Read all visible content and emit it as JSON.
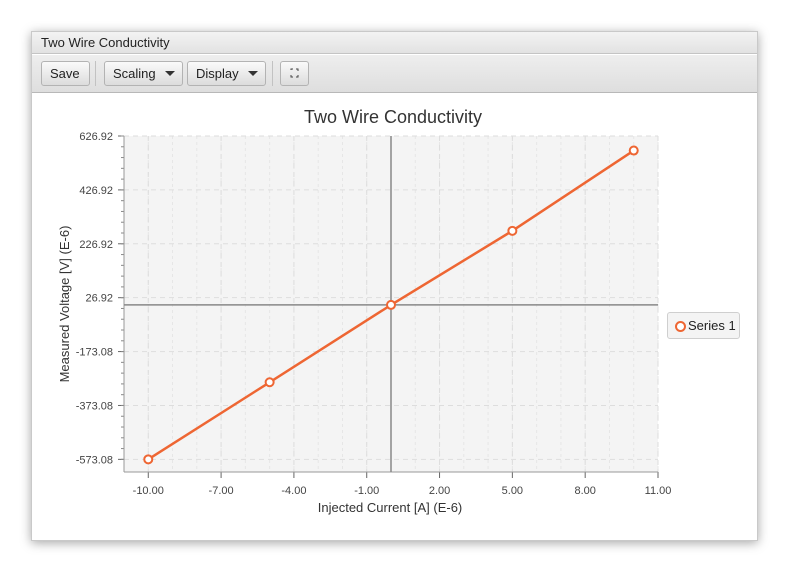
{
  "window": {
    "title": "Two Wire Conductivity"
  },
  "toolbar": {
    "save_label": "Save",
    "scaling_label": "Scaling",
    "display_label": "Display",
    "fullscreen_icon": "fullscreen-icon"
  },
  "colors": {
    "series": "#ee6633",
    "plot_background": "#f4f4f4",
    "grid": "#dddddd",
    "zero_axis": "#888888"
  },
  "chart_data": {
    "type": "line",
    "title": "Two Wire Conductivity",
    "xlabel": "Injected Current [A] (E-6)",
    "ylabel": "Measured Voltage [V] (E-6)",
    "xlim": [
      -11,
      11.0
    ],
    "ylim": [
      -620,
      626.92
    ],
    "x_ticks": [
      "-10.00",
      "-7.00",
      "-4.00",
      "-1.00",
      "2.00",
      "5.00",
      "8.00",
      "11.00"
    ],
    "y_ticks": [
      "626.92",
      "426.92",
      "226.92",
      "26.92",
      "-173.08",
      "-373.08",
      "-573.08"
    ],
    "grid": true,
    "legend_position": "right",
    "series": [
      {
        "name": "Series 1",
        "x": [
          -10,
          -5,
          0,
          5,
          10
        ],
        "y": [
          -573,
          -287,
          0,
          275,
          573
        ]
      }
    ]
  }
}
